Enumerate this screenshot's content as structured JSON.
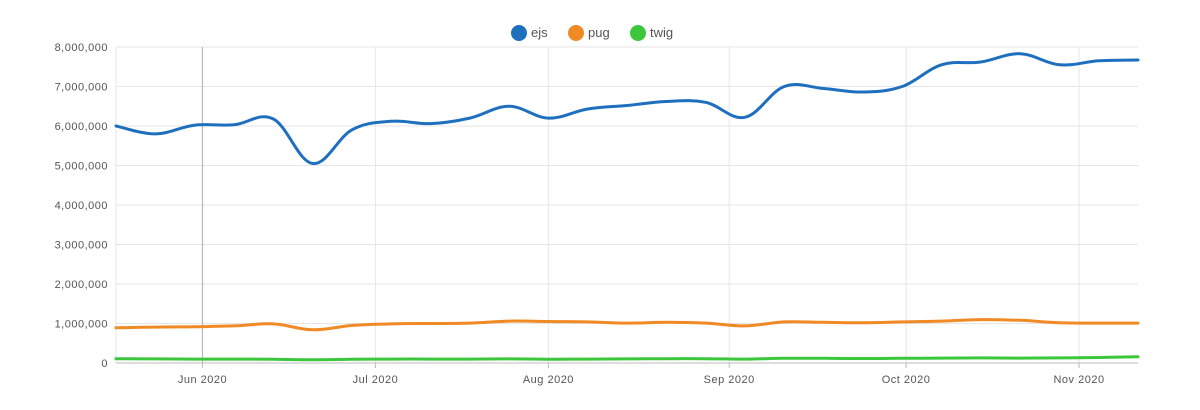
{
  "chart_data": {
    "type": "line",
    "title": "",
    "xlabel": "",
    "ylabel": "",
    "ylim": [
      0,
      8000000
    ],
    "yticks": [
      0,
      1000000,
      2000000,
      3000000,
      4000000,
      5000000,
      6000000,
      7000000,
      8000000
    ],
    "ytick_labels": [
      "0",
      "1,000,000",
      "2,000,000",
      "3,000,000",
      "4,000,000",
      "5,000,000",
      "6,000,000",
      "7,000,000",
      "8,000,000"
    ],
    "x_type": "weekly",
    "xlim_weeks": [
      0,
      26
    ],
    "x_ticks": [
      {
        "label": "Jun 2020",
        "week": 2.2
      },
      {
        "label": "Jul 2020",
        "week": 6.6
      },
      {
        "label": "Aug 2020",
        "week": 11.0
      },
      {
        "label": "Sep 2020",
        "week": 15.6
      },
      {
        "label": "Oct 2020",
        "week": 20.1
      },
      {
        "label": "Nov 2020",
        "week": 24.5
      }
    ],
    "legend_position": "top-center",
    "highlight_week": 2.2,
    "series": [
      {
        "name": "ejs",
        "color": "#1f6fbf",
        "values": [
          6000000,
          5800000,
          6020000,
          6030000,
          6180000,
          5050000,
          5900000,
          6120000,
          6060000,
          6200000,
          6500000,
          6200000,
          6430000,
          6520000,
          6620000,
          6600000,
          6220000,
          7000000,
          6950000,
          6860000,
          7000000,
          7550000,
          7620000,
          7830000,
          7550000,
          7650000,
          7670000
        ]
      },
      {
        "name": "pug",
        "color": "#f08a24",
        "values": [
          890000,
          910000,
          920000,
          940000,
          990000,
          840000,
          950000,
          990000,
          1000000,
          1010000,
          1060000,
          1050000,
          1040000,
          1010000,
          1030000,
          1010000,
          940000,
          1040000,
          1030000,
          1020000,
          1040000,
          1060000,
          1100000,
          1080000,
          1020000,
          1010000,
          1010000
        ]
      },
      {
        "name": "twig",
        "color": "#3cc63c",
        "values": [
          110000,
          105000,
          100000,
          98000,
          95000,
          80000,
          95000,
          100000,
          98000,
          100000,
          105000,
          95000,
          100000,
          105000,
          110000,
          108000,
          100000,
          120000,
          118000,
          115000,
          118000,
          125000,
          128000,
          125000,
          130000,
          140000,
          160000
        ]
      }
    ]
  }
}
